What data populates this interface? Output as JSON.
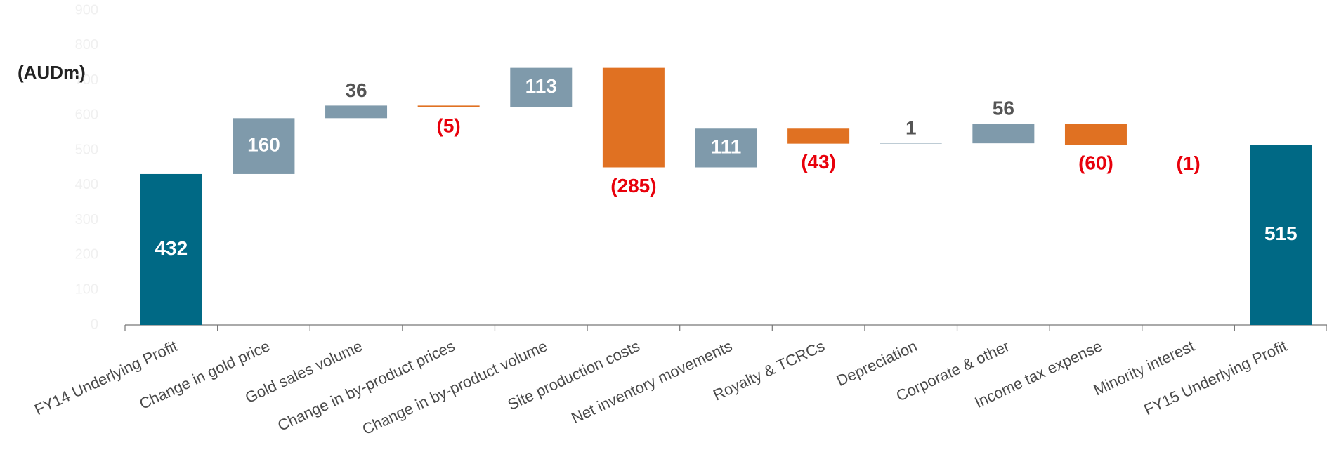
{
  "chart_data": {
    "type": "waterfall",
    "y_label": "(AUDm)",
    "categories": [
      "FY14 Underlying Profit",
      "Change in gold price",
      "Gold sales volume",
      "Change in by-product prices",
      "Change in by-product volume",
      "Site production costs",
      "Net inventory movements",
      "Royalty & TCRCs",
      "Depreciation",
      "Corporate & other",
      "Income tax expense",
      "Minority interest",
      "FY15 Underlying Profit"
    ],
    "measure": [
      "total",
      "relative",
      "relative",
      "relative",
      "relative",
      "relative",
      "relative",
      "relative",
      "relative",
      "relative",
      "relative",
      "relative",
      "total"
    ],
    "values": [
      432,
      160,
      36,
      -5,
      113,
      -285,
      111,
      -43,
      1,
      56,
      -60,
      -1,
      515
    ],
    "value_labels": [
      "432",
      "160",
      "36",
      "(5)",
      "113",
      "(285)",
      "111",
      "(43)",
      "1",
      "56",
      "(60)",
      "(1)",
      "515"
    ],
    "colors": {
      "total": "#006985",
      "increase": "#7f9aab",
      "decrease": "#e07122"
    },
    "ylim": [
      0,
      900
    ],
    "yticks": [
      0,
      100,
      200,
      300,
      400,
      500,
      600,
      700,
      800,
      900
    ]
  }
}
